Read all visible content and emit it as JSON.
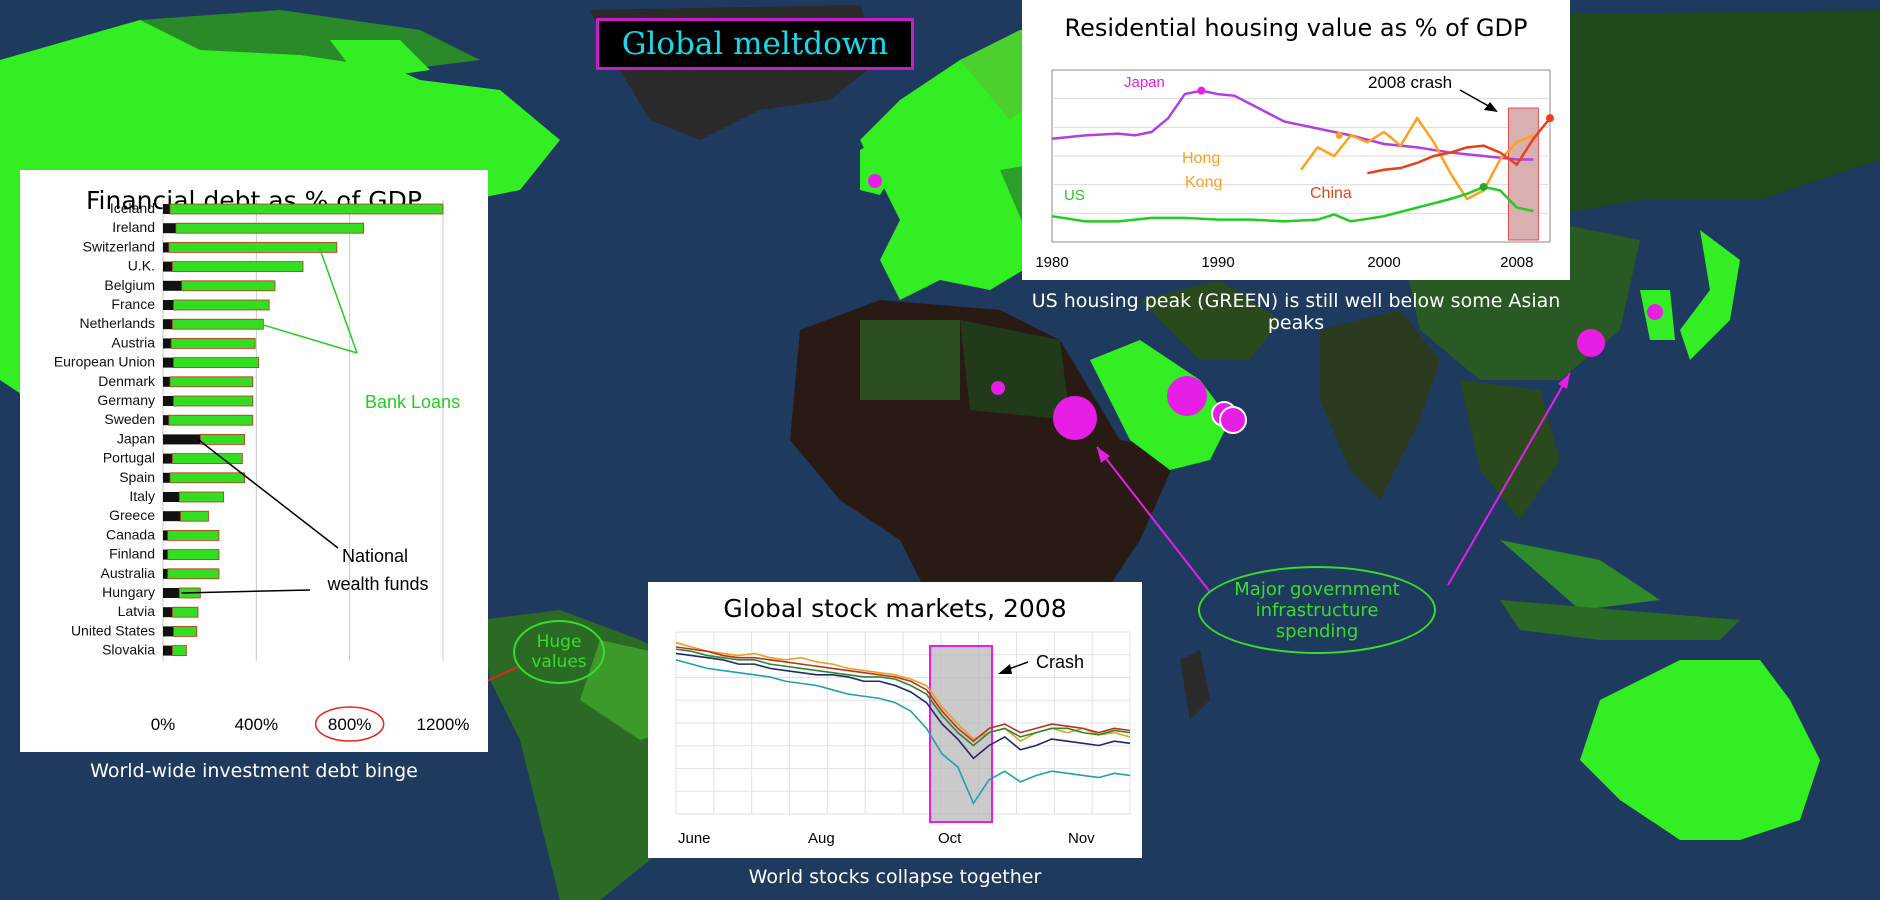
{
  "title": "Global meltdown",
  "colors": {
    "ocean": "#1e3a5f",
    "land_bright": "#33ee22",
    "land_dark": "#1d3a1a",
    "magenta": "#e61ee6",
    "green": "#22cc22"
  },
  "callouts": {
    "huge_values": "Huge values",
    "infrastructure": "Major government infrastructure spending"
  },
  "debt_panel": {
    "caption": "World-wide investment debt binge",
    "annotations": {
      "bank_loans": "Bank Loans",
      "national_wealth": "National wealth funds"
    }
  },
  "housing_panel": {
    "caption": "US housing peak (GREEN) is still well below some Asian peaks",
    "crash_label": "2008 crash"
  },
  "stocks_panel": {
    "caption": "World stocks collapse together",
    "crash_label": "Crash"
  },
  "chart_data": [
    {
      "type": "bar",
      "title": "Financial debt as % of GDP",
      "categories": [
        "Iceland",
        "Ireland",
        "Switzerland",
        "U.K.",
        "Belgium",
        "France",
        "Netherlands",
        "Austria",
        "European Union",
        "Denmark",
        "Germany",
        "Sweden",
        "Japan",
        "Portugal",
        "Spain",
        "Italy",
        "Greece",
        "Canada",
        "Finland",
        "Australia",
        "Hungary",
        "Latvia",
        "United States",
        "Slovakia"
      ],
      "series": [
        {
          "name": "National wealth funds",
          "color": "#111111",
          "values": [
            30,
            55,
            25,
            40,
            80,
            45,
            40,
            35,
            45,
            30,
            45,
            25,
            160,
            40,
            30,
            70,
            75,
            20,
            20,
            20,
            70,
            40,
            45,
            40
          ]
        },
        {
          "name": "Bank Loans",
          "color": "#33dd22",
          "values": [
            1170,
            805,
            720,
            560,
            400,
            410,
            390,
            360,
            365,
            355,
            340,
            360,
            190,
            300,
            320,
            190,
            120,
            220,
            220,
            220,
            90,
            110,
            100,
            60
          ]
        }
      ],
      "xticks": [
        "0%",
        "400%",
        "800%",
        "1200%"
      ],
      "xlim": [
        0,
        1350
      ]
    },
    {
      "type": "line",
      "title": "Residential housing value as % of GDP",
      "xticks": [
        "1980",
        "1990",
        "2000",
        "2008"
      ],
      "xlim": [
        1980,
        2010
      ],
      "ylim": [
        0,
        100
      ],
      "series": [
        {
          "name": "Japan",
          "color": "#b040e0",
          "x": [
            1980,
            1982,
            1984,
            1985,
            1986,
            1987,
            1988,
            1989,
            1990,
            1991,
            1992,
            1993,
            1994,
            1996,
            1998,
            2000,
            2002,
            2004,
            2006,
            2008,
            2009
          ],
          "y": [
            60,
            62,
            63,
            62,
            64,
            72,
            86,
            88,
            86,
            85,
            80,
            75,
            70,
            66,
            62,
            57,
            55,
            52,
            50,
            48,
            48
          ]
        },
        {
          "name": "Hong Kong",
          "color": "#ffa020",
          "x": [
            1995,
            1996,
            1997,
            1998,
            1999,
            2000,
            2001,
            2002,
            2003,
            2004,
            2005,
            2006,
            2007,
            2008,
            2009
          ],
          "y": [
            42,
            55,
            50,
            62,
            58,
            64,
            56,
            72,
            58,
            40,
            25,
            30,
            48,
            58,
            62
          ]
        },
        {
          "name": "China",
          "color": "#e84018",
          "x": [
            1999,
            2000,
            2001,
            2002,
            2003,
            2004,
            2005,
            2006,
            2007,
            2008,
            2009,
            2010
          ],
          "y": [
            40,
            42,
            43,
            46,
            50,
            52,
            55,
            56,
            52,
            45,
            60,
            72
          ]
        },
        {
          "name": "US",
          "color": "#22cc22",
          "x": [
            1980,
            1982,
            1984,
            1986,
            1988,
            1990,
            1992,
            1994,
            1996,
            1997,
            1998,
            2000,
            2002,
            2004,
            2005,
            2006,
            2007,
            2008,
            2009
          ],
          "y": [
            15,
            12,
            12,
            14,
            14,
            13,
            13,
            12,
            13,
            16,
            12,
            15,
            20,
            25,
            28,
            32,
            30,
            20,
            18
          ]
        }
      ]
    },
    {
      "type": "line",
      "title": "Global stock markets, 2008",
      "xticks": [
        "June",
        "Aug",
        "Oct",
        "Nov"
      ],
      "series": [
        {
          "color": "#e8a020",
          "values": [
            100,
            98,
            96,
            95,
            94,
            95,
            93,
            92,
            93,
            91,
            90,
            88,
            87,
            86,
            85,
            83,
            80,
            70,
            62,
            55,
            58,
            60,
            54,
            58,
            60,
            58,
            60,
            57,
            58,
            56
          ]
        },
        {
          "color": "#c03020",
          "values": [
            98,
            97,
            96,
            94,
            93,
            93,
            92,
            91,
            90,
            89,
            88,
            87,
            86,
            85,
            84,
            82,
            78,
            68,
            60,
            54,
            60,
            62,
            58,
            60,
            62,
            61,
            60,
            58,
            60,
            59
          ]
        },
        {
          "color": "#2a8a2a",
          "values": [
            97,
            96,
            94,
            93,
            92,
            92,
            90,
            89,
            88,
            87,
            86,
            85,
            84,
            84,
            83,
            80,
            76,
            66,
            58,
            52,
            58,
            60,
            56,
            58,
            60,
            60,
            58,
            57,
            59,
            58
          ]
        },
        {
          "color": "#202870",
          "values": [
            95,
            94,
            93,
            92,
            90,
            90,
            88,
            87,
            86,
            85,
            85,
            84,
            82,
            82,
            80,
            77,
            72,
            62,
            55,
            46,
            52,
            56,
            50,
            52,
            55,
            54,
            53,
            52,
            54,
            53
          ]
        },
        {
          "color": "#20a0b0",
          "values": [
            92,
            90,
            88,
            87,
            86,
            85,
            84,
            82,
            81,
            80,
            78,
            76,
            75,
            74,
            72,
            68,
            60,
            48,
            42,
            25,
            36,
            40,
            35,
            38,
            40,
            39,
            38,
            37,
            39,
            38
          ]
        }
      ]
    }
  ]
}
